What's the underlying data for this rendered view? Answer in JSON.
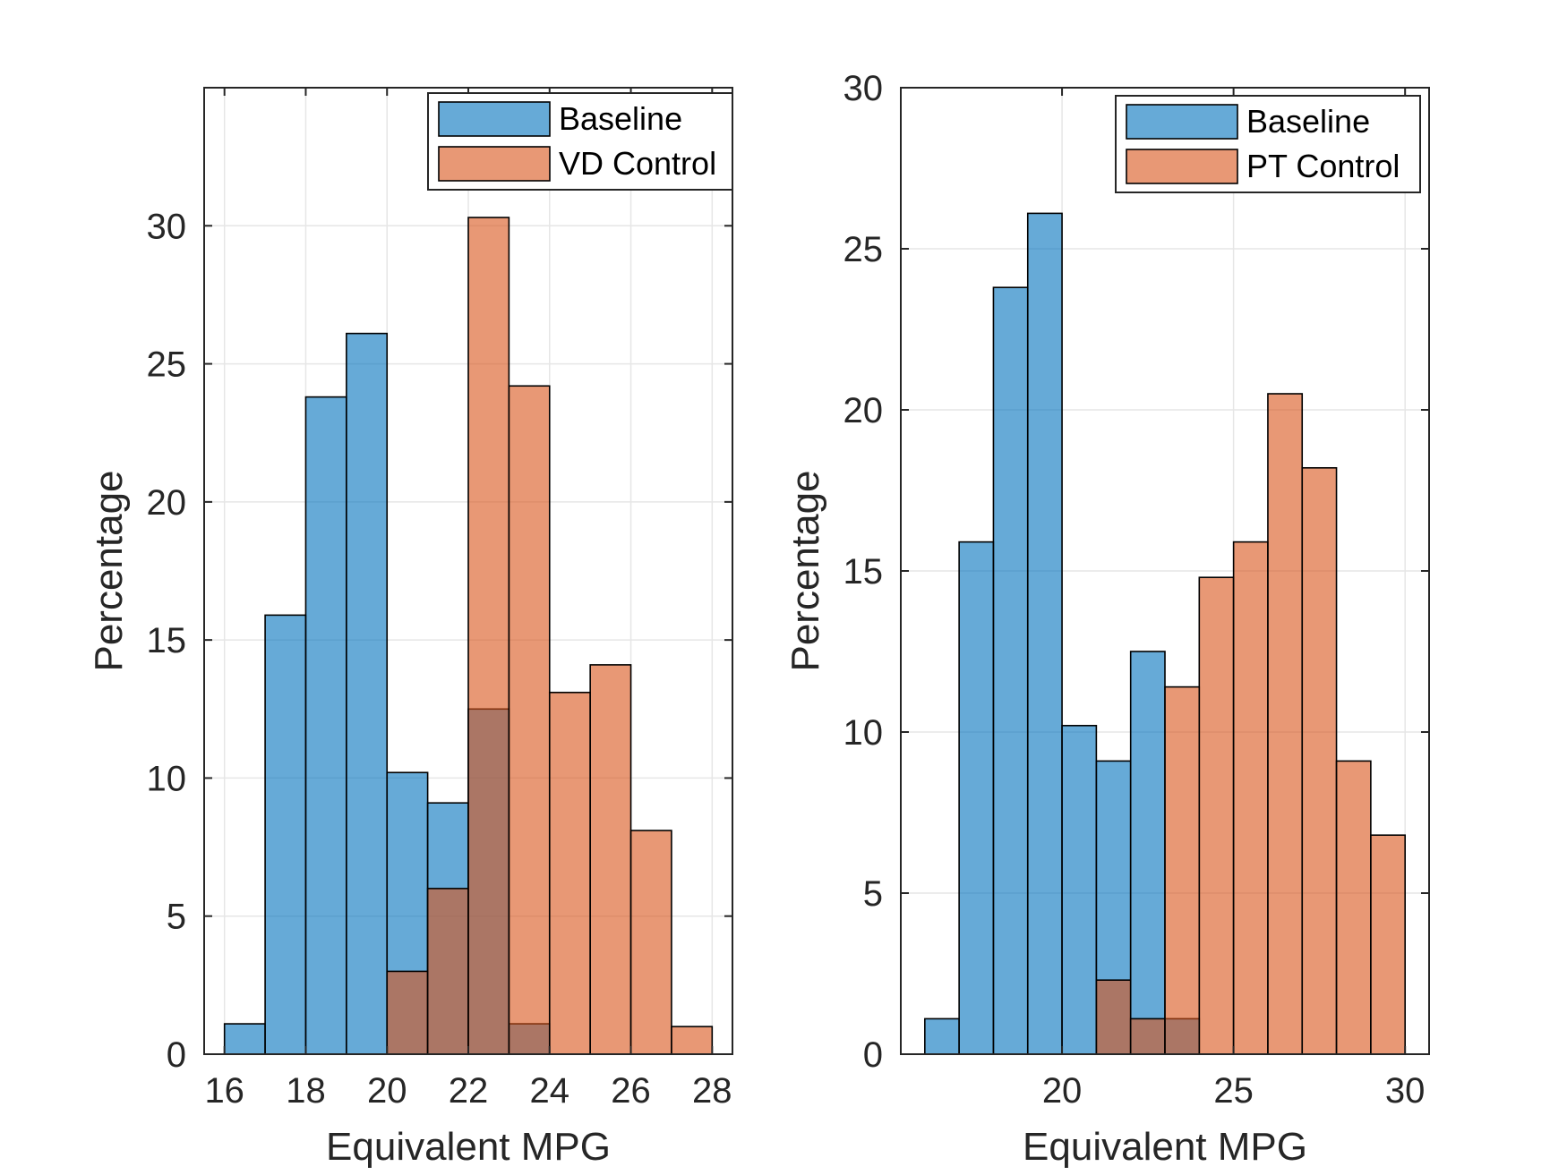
{
  "chart_data": [
    {
      "type": "histogram",
      "title": "",
      "xlabel": "Equivalent MPG",
      "ylabel": "Percentage",
      "xlim": [
        15.5,
        28.5
      ],
      "ylim": [
        0,
        35
      ],
      "xticks": [
        16,
        18,
        20,
        22,
        24,
        26,
        28
      ],
      "yticks": [
        0,
        5,
        10,
        15,
        20,
        25,
        30
      ],
      "grid": true,
      "legend_position": "top-right",
      "series": [
        {
          "name": "Baseline",
          "color": "#0072BD",
          "bin_edges": [
            16,
            17,
            18,
            19,
            20,
            21,
            22,
            23,
            24
          ],
          "values": [
            1.1,
            15.9,
            23.8,
            26.1,
            10.2,
            9.1,
            12.5,
            1.1
          ]
        },
        {
          "name": "VD Control",
          "color": "#D95319",
          "bin_edges": [
            20,
            21,
            22,
            23,
            24,
            25,
            26,
            27,
            28
          ],
          "values": [
            3.0,
            6.0,
            30.3,
            24.2,
            13.1,
            14.1,
            8.1,
            1.0
          ]
        }
      ]
    },
    {
      "type": "histogram",
      "title": "",
      "xlabel": "Equivalent MPG",
      "ylabel": "Percentage",
      "xlim": [
        15.3,
        30.7
      ],
      "ylim": [
        0,
        30
      ],
      "xticks": [
        20,
        25,
        30
      ],
      "yticks": [
        0,
        5,
        10,
        15,
        20,
        25,
        30
      ],
      "grid": true,
      "legend_position": "top-right",
      "series": [
        {
          "name": "Baseline",
          "color": "#0072BD",
          "bin_edges": [
            16,
            17,
            18,
            19,
            20,
            21,
            22,
            23,
            24
          ],
          "values": [
            1.1,
            15.9,
            23.8,
            26.1,
            10.2,
            9.1,
            12.5,
            1.1
          ]
        },
        {
          "name": "PT Control",
          "color": "#D95319",
          "bin_edges": [
            21,
            22,
            23,
            24,
            25,
            26,
            27,
            28,
            29,
            30
          ],
          "values": [
            2.3,
            1.1,
            11.4,
            14.8,
            15.9,
            20.5,
            18.2,
            9.1,
            6.8
          ]
        }
      ]
    }
  ]
}
